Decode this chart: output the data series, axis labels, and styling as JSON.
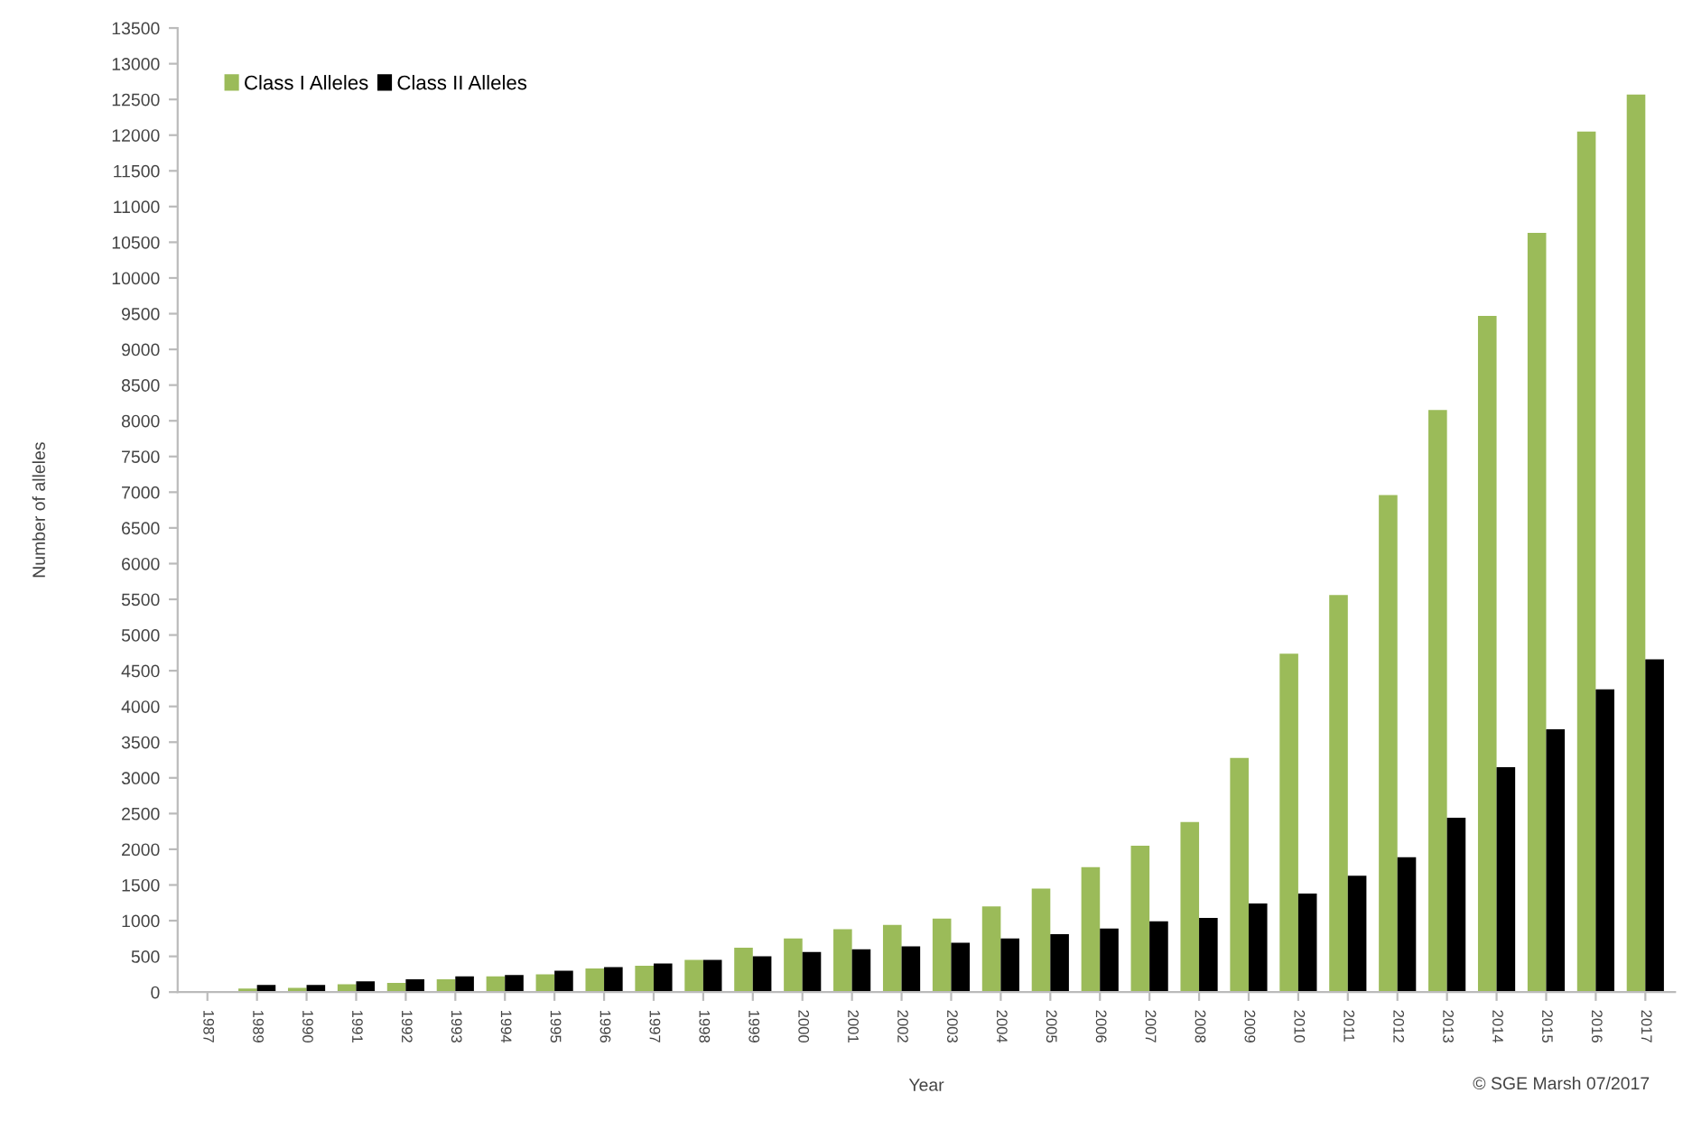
{
  "chart_data": {
    "type": "bar",
    "xlabel": "Year",
    "ylabel": "Number of alleles",
    "categories": [
      "1987",
      "1989",
      "1990",
      "1991",
      "1992",
      "1993",
      "1994",
      "1995",
      "1996",
      "1997",
      "1998",
      "1999",
      "2000",
      "2001",
      "2002",
      "2003",
      "2004",
      "2005",
      "2006",
      "2007",
      "2008",
      "2009",
      "2010",
      "2011",
      "2012",
      "2013",
      "2014",
      "2015",
      "2016",
      "2017"
    ],
    "series": [
      {
        "name": "Class I Alleles",
        "color": "#9bbb59",
        "values": [
          null,
          50,
          60,
          110,
          130,
          180,
          220,
          250,
          330,
          370,
          450,
          620,
          750,
          880,
          940,
          1030,
          1200,
          1450,
          1750,
          2050,
          2380,
          3280,
          4740,
          5560,
          6960,
          8150,
          9470,
          10630,
          12050,
          12570
        ]
      },
      {
        "name": "Class II Alleles",
        "color": "#000000",
        "values": [
          null,
          100,
          100,
          150,
          180,
          220,
          240,
          300,
          350,
          400,
          450,
          500,
          560,
          600,
          640,
          690,
          750,
          810,
          890,
          990,
          1040,
          1240,
          1380,
          1630,
          1890,
          2440,
          3150,
          3680,
          4240,
          4660
        ]
      }
    ],
    "ylim": [
      0,
      13500
    ],
    "yticks": [
      0,
      500,
      1000,
      1500,
      2000,
      2500,
      3000,
      3500,
      4000,
      4500,
      5000,
      5500,
      6000,
      6500,
      7000,
      7500,
      8000,
      8500,
      9000,
      9500,
      10000,
      10500,
      11000,
      11500,
      12000,
      12500,
      13000,
      13500
    ],
    "legend": "top left",
    "grid": false,
    "annotations": [
      "© SGE Marsh 07/2017"
    ]
  }
}
